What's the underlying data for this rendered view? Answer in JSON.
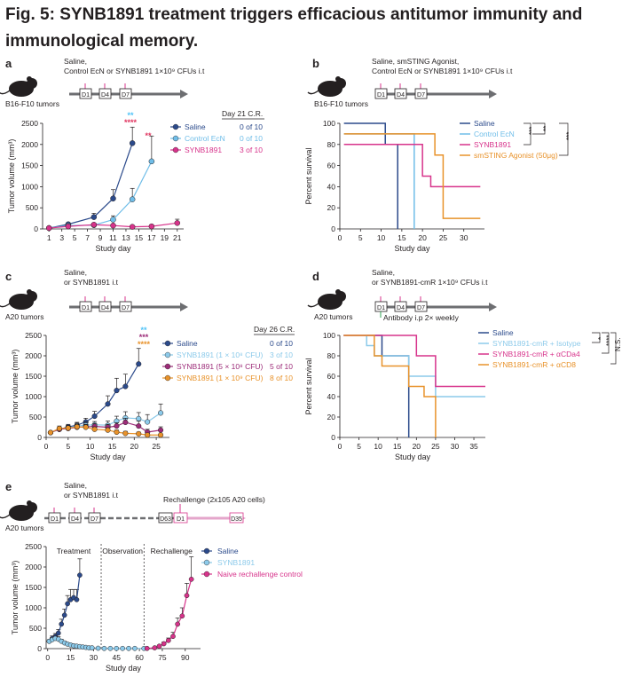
{
  "figure": {
    "title": "Fig. 5: SYNB1891 treatment triggers efficacious antitumor immunity and immunological memory.",
    "colors": {
      "saline": "#2b4a8b",
      "ecn": "#6fbde8",
      "synb": "#d7338b",
      "orange": "#e8922a",
      "light_blue": "#8ccaea",
      "purple": "#9c2b78",
      "arrow": "#6d6e71",
      "star_cyan": "#4fc3f7",
      "star_red": "#e0345f"
    }
  },
  "panels": {
    "a": {
      "letter": "a",
      "treatment_lines": [
        "Saline,",
        "Control EcN or SYNB1891 1×10⁹ CFUs i.t"
      ],
      "days": [
        "D1",
        "D4",
        "D7"
      ],
      "tumor_label": "B16-F10 tumors",
      "cr_header": "Day 21 C.R.",
      "stars": [
        {
          "text": "**",
          "color_key": "star_cyan"
        },
        {
          "text": "****",
          "color_key": "star_red"
        },
        {
          "text": "**",
          "color_key": "star_red"
        }
      ],
      "chart_data": {
        "type": "line",
        "xlabel": "Study day",
        "ylabel": "Tumor volume (mm³)",
        "xticks": [
          1,
          3,
          5,
          7,
          9,
          11,
          13,
          15,
          17,
          19,
          21
        ],
        "yticks": [
          0,
          500,
          1000,
          1500,
          2000,
          2500
        ],
        "xlim": [
          0,
          22
        ],
        "ylim": [
          0,
          2500
        ],
        "series": [
          {
            "name": "Saline",
            "color_key": "saline",
            "cr": "0 of 10",
            "x": [
              1,
              4,
              8,
              11,
              14
            ],
            "y": [
              20,
              110,
              280,
              720,
              2030
            ],
            "err": [
              10,
              30,
              90,
              210,
              380
            ]
          },
          {
            "name": "Control EcN",
            "color_key": "ecn",
            "cr": "0 of 10",
            "x": [
              1,
              4,
              8,
              11,
              14,
              17
            ],
            "y": [
              20,
              80,
              90,
              220,
              700,
              1600
            ],
            "err": [
              10,
              25,
              50,
              90,
              260,
              600
            ]
          },
          {
            "name": "SYNB1891",
            "color_key": "synb",
            "cr": "3 of 10",
            "x": [
              1,
              4,
              8,
              11,
              14,
              17,
              21
            ],
            "y": [
              20,
              60,
              100,
              80,
              50,
              60,
              140
            ],
            "err": [
              10,
              20,
              40,
              30,
              30,
              40,
              90
            ]
          }
        ]
      }
    },
    "b": {
      "letter": "b",
      "treatment_lines": [
        "Saline, smSTING Agonist,",
        "Control EcN or SYNB1891 1×10⁹ CFUs i.t"
      ],
      "days": [
        "D1",
        "D4",
        "D7"
      ],
      "tumor_label": "B16-F10 tumors",
      "sig": [
        "***",
        "**",
        "***"
      ],
      "chart_data": {
        "type": "line",
        "xlabel": "Study day",
        "ylabel": "Percent survival",
        "xticks": [
          0,
          5,
          10,
          15,
          20,
          25,
          30
        ],
        "yticks": [
          0,
          20,
          40,
          60,
          80,
          100
        ],
        "xlim": [
          0,
          35
        ],
        "ylim": [
          0,
          100
        ],
        "series": [
          {
            "name": "Saline",
            "color_key": "saline",
            "x": [
              1,
              11,
              11,
              14,
              14
            ],
            "y": [
              100,
              100,
              80,
              80,
              0
            ]
          },
          {
            "name": "Control EcN",
            "color_key": "ecn",
            "x": [
              1,
              18,
              18
            ],
            "y": [
              90,
              90,
              0
            ]
          },
          {
            "name": "SYNB1891",
            "color_key": "synb",
            "x": [
              1,
              20,
              20,
              22,
              22,
              34
            ],
            "y": [
              80,
              80,
              50,
              50,
              40,
              40
            ]
          },
          {
            "name": "smSTING Agonist (50μg)",
            "color_key": "orange",
            "x": [
              1,
              19,
              19,
              23,
              23,
              25,
              25,
              34
            ],
            "y": [
              90,
              90,
              90,
              90,
              70,
              70,
              10,
              10
            ]
          }
        ]
      }
    },
    "c": {
      "letter": "c",
      "treatment_lines": [
        "Saline,",
        "or SYNB1891 i.t"
      ],
      "days": [
        "D1",
        "D4",
        "D7"
      ],
      "tumor_label": "A20 tumors",
      "cr_header": "Day 26 C.R.",
      "stars": [
        {
          "text": "**",
          "color_key": "star_cyan"
        },
        {
          "text": "***",
          "color_key": "purple"
        },
        {
          "text": "****",
          "color_key": "orange"
        }
      ],
      "chart_data": {
        "type": "line",
        "xlabel": "Study day",
        "ylabel": "Tumor volume (mm³)",
        "xticks": [
          0,
          5,
          10,
          15,
          20,
          25
        ],
        "yticks": [
          0,
          500,
          1000,
          1500,
          2000,
          2500
        ],
        "xlim": [
          0,
          28
        ],
        "ylim": [
          0,
          2500
        ],
        "series": [
          {
            "name": "Saline",
            "color_key": "saline",
            "cr": "0 of 10",
            "x": [
              1,
              3,
              5,
              7,
              9,
              11,
              14,
              16,
              18,
              21
            ],
            "y": [
              120,
              200,
              260,
              300,
              380,
              520,
              820,
              1150,
              1250,
              1800
            ],
            "err": [
              30,
              50,
              60,
              70,
              90,
              120,
              200,
              300,
              300,
              380
            ]
          },
          {
            "name": "SYNB1891 (1 × 10⁸ CFU)",
            "color_key": "light_blue",
            "cr": "3 of 10",
            "x": [
              1,
              3,
              5,
              7,
              9,
              11,
              14,
              16,
              18,
              21,
              23,
              26
            ],
            "y": [
              120,
              200,
              230,
              280,
              300,
              310,
              300,
              400,
              480,
              460,
              380,
              600
            ],
            "err": [
              30,
              50,
              60,
              70,
              80,
              80,
              100,
              120,
              150,
              150,
              180,
              220
            ]
          },
          {
            "name": "SYNB1891 (5 × 10⁸ CFU)",
            "color_key": "purple",
            "cr": "5 of 10",
            "x": [
              1,
              3,
              5,
              7,
              9,
              11,
              14,
              16,
              18,
              21,
              23,
              26
            ],
            "y": [
              120,
              200,
              220,
              250,
              260,
              270,
              250,
              280,
              370,
              280,
              130,
              180
            ],
            "err": [
              30,
              50,
              60,
              60,
              60,
              70,
              70,
              80,
              100,
              120,
              70,
              80
            ]
          },
          {
            "name": "SYNB1891 (1 × 10⁹ CFU)",
            "color_key": "orange",
            "cr": "8 of 10",
            "x": [
              1,
              3,
              5,
              7,
              9,
              11,
              14,
              16,
              18,
              21,
              23,
              26
            ],
            "y": [
              120,
              220,
              230,
              260,
              250,
              200,
              180,
              130,
              100,
              90,
              60,
              60
            ],
            "err": [
              30,
              60,
              60,
              60,
              60,
              60,
              60,
              50,
              50,
              40,
              40,
              30
            ]
          }
        ]
      }
    },
    "d": {
      "letter": "d",
      "treatment_lines": [
        "Saline,",
        "or SYNB1891-cmR 1×10⁹ CFUs i.t"
      ],
      "days": [
        "D1",
        "D4",
        "D7"
      ],
      "tumor_label": "A20 tumors",
      "antibody_label": "Antibody i.p 2× weekly",
      "sig": [
        "*",
        "****",
        "N.S."
      ],
      "chart_data": {
        "type": "line",
        "xlabel": "Study day",
        "ylabel": "Percent survival",
        "xticks": [
          0,
          5,
          10,
          15,
          20,
          25,
          30,
          35
        ],
        "yticks": [
          0,
          20,
          40,
          60,
          80,
          100
        ],
        "xlim": [
          0,
          38
        ],
        "ylim": [
          0,
          100
        ],
        "series": [
          {
            "name": "Saline",
            "color_key": "saline",
            "x": [
              1,
              11,
              11,
              18,
              18
            ],
            "y": [
              100,
              100,
              80,
              80,
              0
            ]
          },
          {
            "name": "SYNB1891-cmR + Isotype",
            "color_key": "light_blue",
            "x": [
              1,
              7,
              7,
              9,
              9,
              18,
              18,
              20,
              20,
              25,
              25,
              38
            ],
            "y": [
              100,
              100,
              90,
              90,
              80,
              80,
              60,
              60,
              60,
              60,
              40,
              40
            ]
          },
          {
            "name": "SYNB1891-cmR + αCDa4",
            "color_key": "synb",
            "x": [
              1,
              20,
              20,
              22,
              22,
              25,
              25,
              38
            ],
            "y": [
              100,
              100,
              80,
              80,
              80,
              80,
              50,
              50
            ]
          },
          {
            "name": "SYNB1891-cmR + αCD8",
            "color_key": "orange",
            "x": [
              1,
              9,
              9,
              11,
              11,
              18,
              18,
              22,
              22,
              25,
              25
            ],
            "y": [
              100,
              100,
              80,
              80,
              70,
              70,
              50,
              50,
              40,
              40,
              0
            ]
          }
        ]
      }
    },
    "e": {
      "letter": "e",
      "treatment_lines": [
        "Saline,",
        "or SYNB1891 i.t"
      ],
      "days": [
        "D1",
        "D4",
        "D7"
      ],
      "rechallenge_label": "Rechallenge (2x105 A20 cells)",
      "rechallenge_days": [
        "D63",
        "D1",
        "D35"
      ],
      "tumor_label": "A20 tumors",
      "phases": [
        "Treatment",
        "Observation",
        "Rechallenge"
      ],
      "chart_data": {
        "type": "line",
        "xlabel": "Study day",
        "ylabel": "Tumor volume (mm³)",
        "xticks": [
          0,
          15,
          30,
          45,
          60,
          75,
          90
        ],
        "yticks": [
          0,
          500,
          1000,
          1500,
          2000,
          2500
        ],
        "xlim": [
          -1,
          100
        ],
        "ylim": [
          0,
          2500
        ],
        "series": [
          {
            "name": "Saline",
            "color_key": "saline",
            "x": [
              1,
              3,
              5,
              7,
              9,
              11,
              13,
              15,
              17,
              19,
              21
            ],
            "y": [
              180,
              250,
              300,
              380,
              600,
              820,
              1100,
              1200,
              1250,
              1200,
              1800
            ],
            "err": [
              40,
              60,
              70,
              90,
              120,
              150,
              200,
              250,
              200,
              250,
              400
            ]
          },
          {
            "name": "SYNB1891",
            "color_key": "light_blue",
            "x": [
              1,
              3,
              5,
              7,
              9,
              11,
              13,
              15,
              17,
              19,
              21,
              23,
              25,
              27,
              29,
              33,
              37,
              41,
              45,
              49,
              53,
              57,
              63
            ],
            "y": [
              180,
              220,
              250,
              230,
              180,
              140,
              110,
              90,
              70,
              60,
              50,
              40,
              30,
              20,
              20,
              10,
              5,
              5,
              5,
              5,
              5,
              5,
              5
            ],
            "err": [
              40,
              50,
              60,
              60,
              50,
              40,
              30,
              30,
              20,
              20,
              20,
              15,
              10,
              10,
              10,
              5,
              5,
              5,
              5,
              5,
              5,
              5,
              5
            ]
          },
          {
            "name": "Naive rechallenge control",
            "color_key": "synb",
            "x": [
              65,
              70,
              73,
              76,
              79,
              82,
              85,
              88,
              91,
              94
            ],
            "y": [
              5,
              20,
              60,
              120,
              200,
              300,
              600,
              800,
              1300,
              1700
            ],
            "err": [
              5,
              10,
              20,
              40,
              60,
              100,
              150,
              200,
              300,
              550
            ]
          }
        ]
      }
    }
  }
}
